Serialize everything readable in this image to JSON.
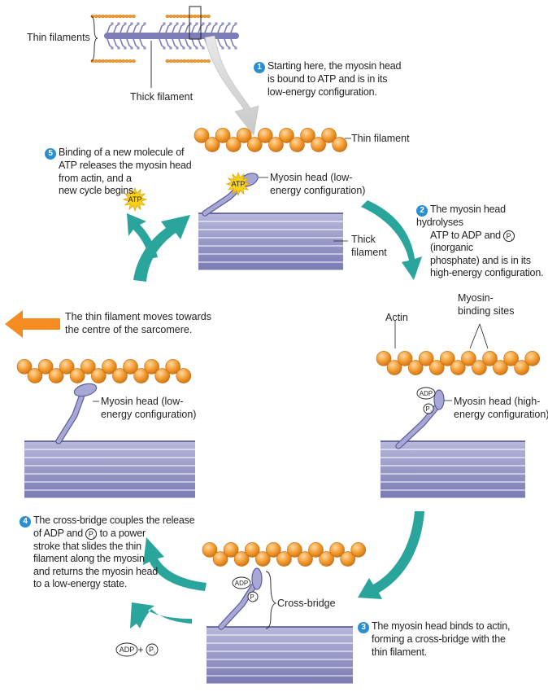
{
  "colors": {
    "actin": "#f29a2e",
    "actin_dark": "#c86e12",
    "thick": "#8f8fc4",
    "thick_dark": "#5e5e9c",
    "teal_arrow": "#2aa59c",
    "orange_arrow": "#f68b1f",
    "badge": "#2a8fd0",
    "atp": "#f7d21c"
  },
  "overview": {
    "thin_label": "Thin filaments",
    "thick_label": "Thick filament"
  },
  "step1": {
    "num": "1",
    "text": [
      "Starting here, the myosin head",
      "is bound to ATP and is in its",
      "low-energy configuration."
    ]
  },
  "panel_top": {
    "thin": "Thin filament",
    "myosin": [
      "Myosin head (low-",
      "energy configuration)"
    ],
    "thick": [
      "Thick",
      "filament"
    ],
    "atp": "ATP"
  },
  "step2": {
    "num": "2",
    "line1": "The myosin head hydrolyses",
    "line2a": "ATP to ADP and ",
    "pi": "P",
    "pi_sub": "i",
    "line2b": " (inorganic",
    "line3": "phosphate) and is in its",
    "line4": "high-energy configuration."
  },
  "panel_right": {
    "actin": "Actin",
    "binding": [
      "Myosin-",
      "binding sites"
    ],
    "adp": "ADP",
    "pi": "P",
    "pi_sub": "i",
    "myosin": [
      "Myosin head (high-",
      "energy configuration)"
    ]
  },
  "step3": {
    "num": "3",
    "text": [
      "The myosin head binds to actin,",
      "forming a cross-bridge with the",
      "thin filament."
    ]
  },
  "panel_bottom": {
    "adp": "ADP",
    "pi": "P",
    "pi_sub": "i",
    "cross": "Cross-bridge"
  },
  "step4": {
    "num": "4",
    "line1": "The cross-bridge couples the release",
    "line2a": "of ADP and ",
    "pi": "P",
    "pi_sub": "i",
    "line2b": " to a power",
    "rest": [
      "stroke that slides the thin",
      "filament along the myosin",
      "and returns the myosin head",
      "to a low-energy state."
    ]
  },
  "products": {
    "adp": "ADP",
    "plus": "+",
    "pi": "P",
    "pi_sub": "i"
  },
  "panel_left": {
    "move": [
      "The thin filament moves towards",
      "the centre of the sarcomere."
    ],
    "myosin": [
      "Myosin head (low-",
      "energy configuration)"
    ]
  },
  "step5": {
    "num": "5",
    "text": [
      "Binding of a new molecule of",
      "ATP releases the myosin head",
      "from actin, and a",
      "new cycle begins."
    ],
    "atp": "ATP"
  }
}
